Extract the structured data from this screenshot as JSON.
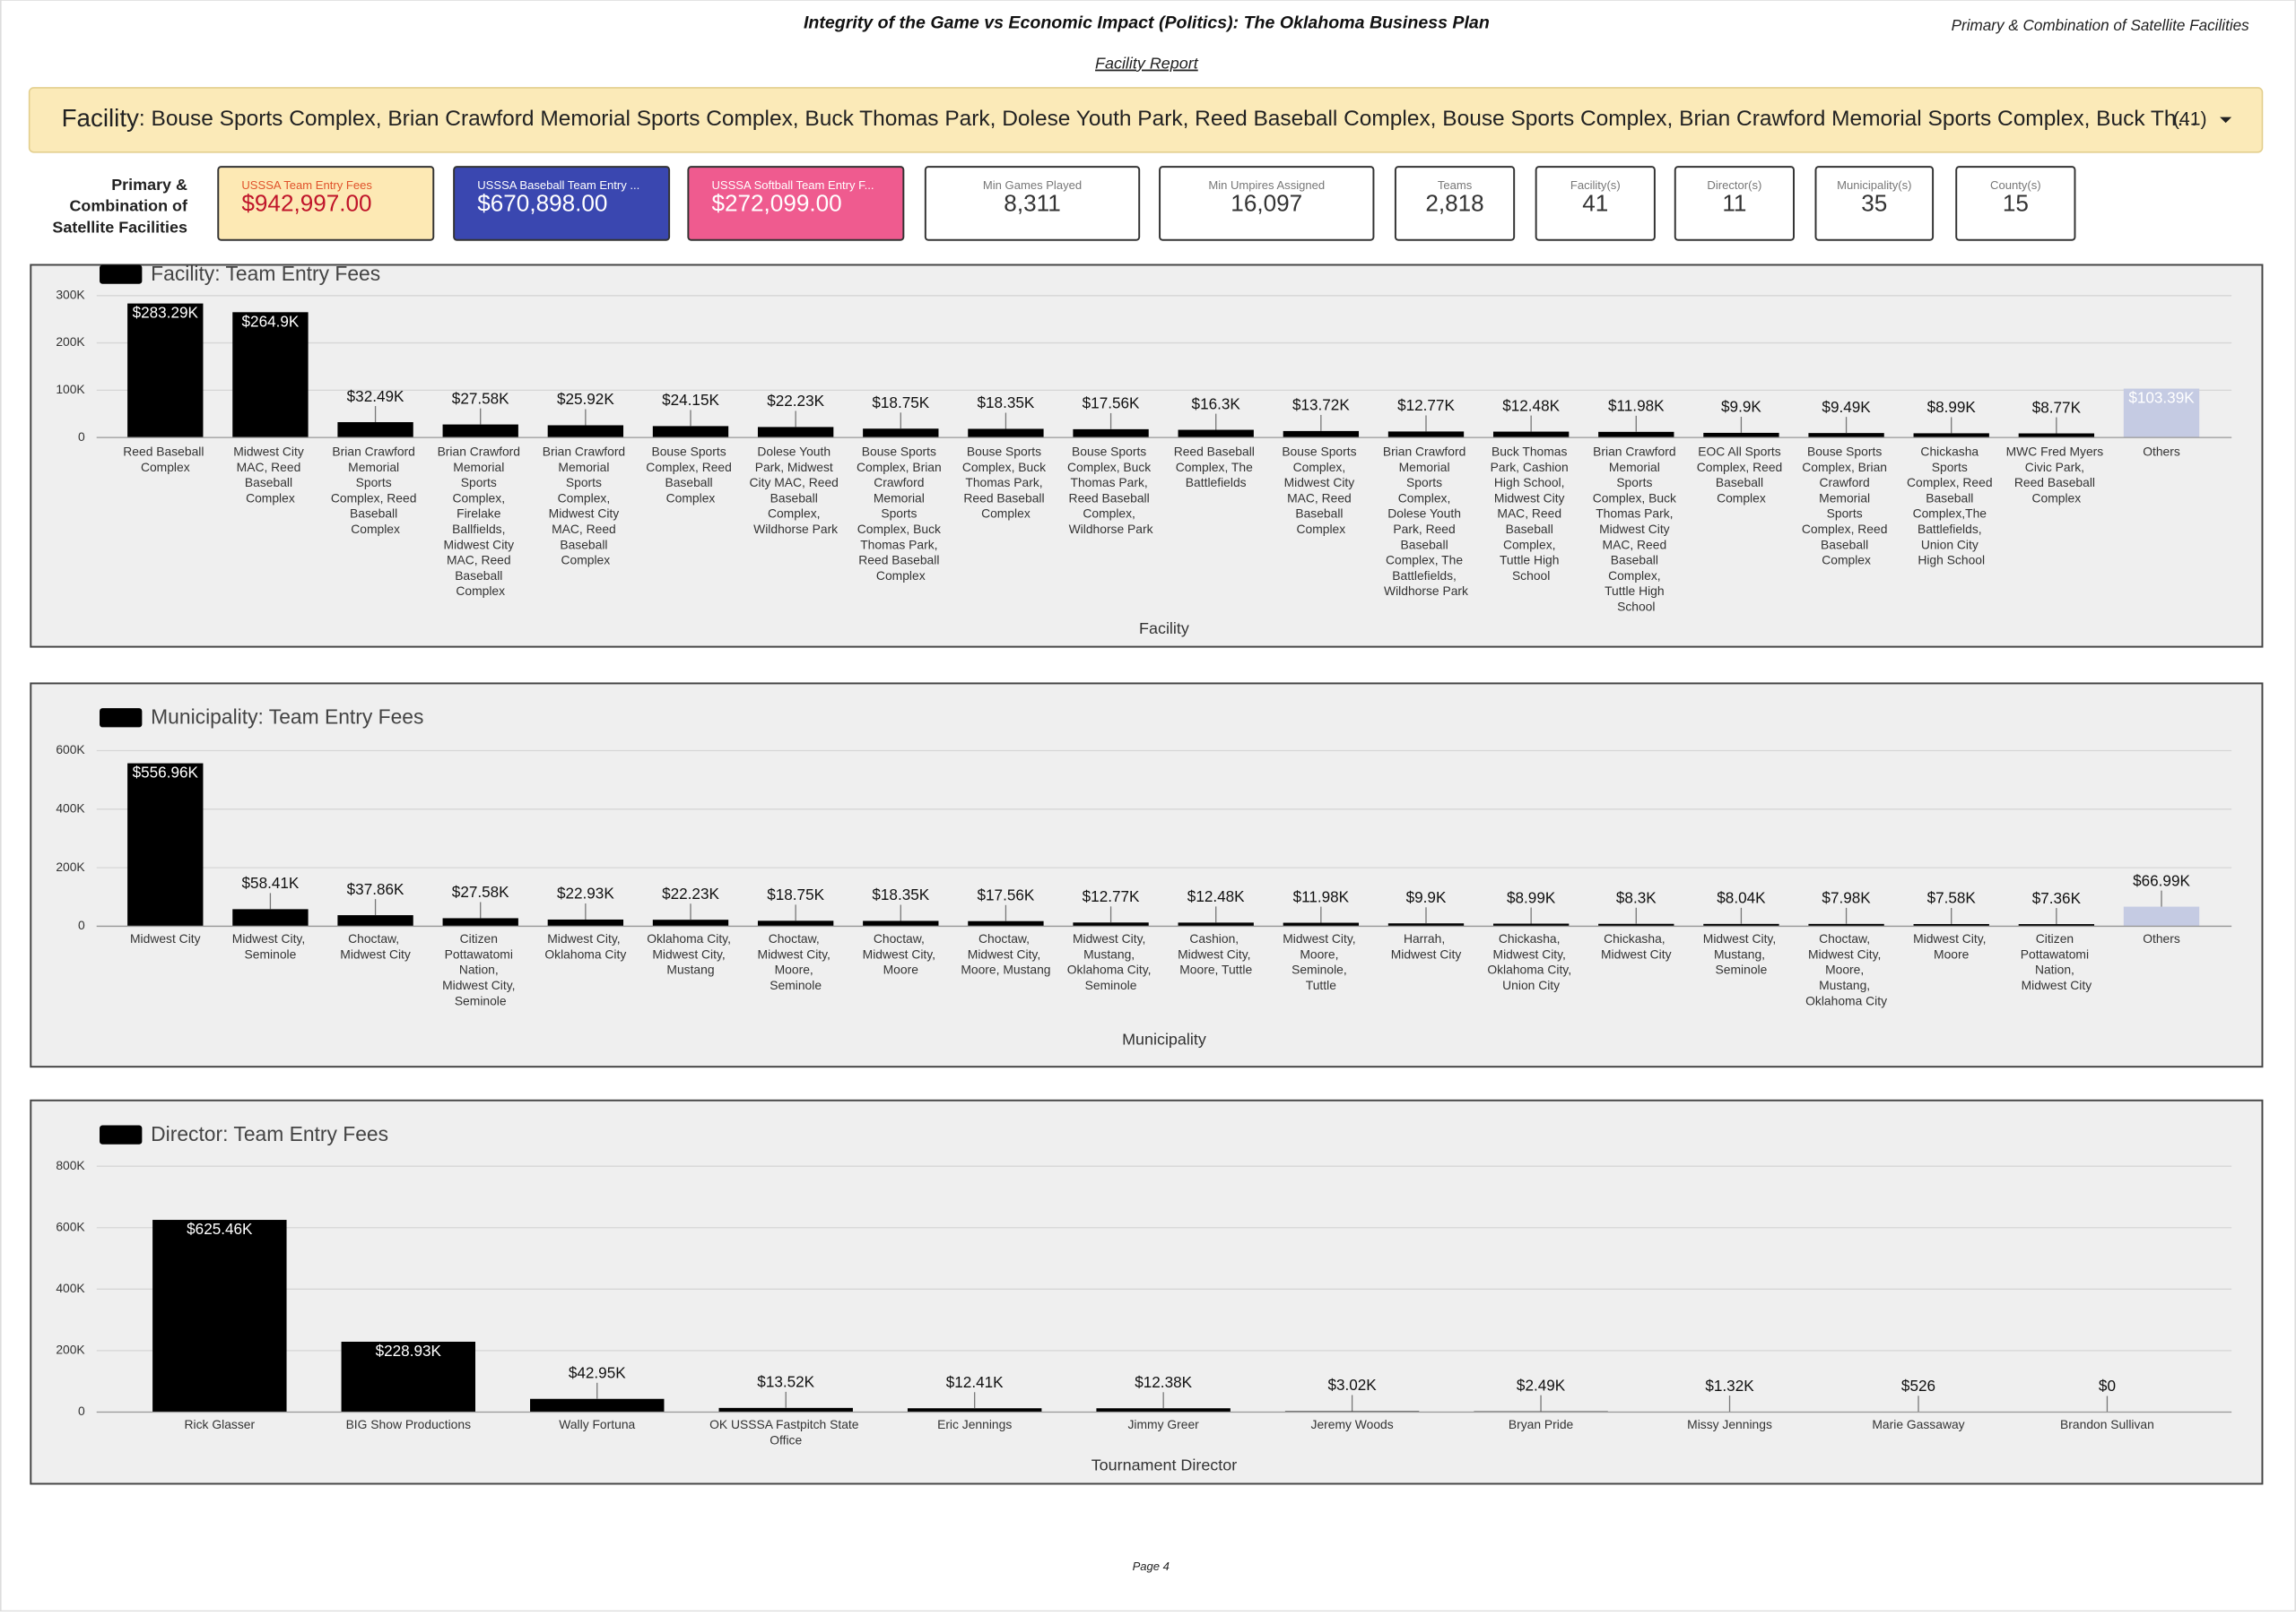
{
  "header": {
    "title": "Integrity of the Game vs Economic Impact (Politics): The Oklahoma Business Plan",
    "right_note": "Primary & Combination of Satellite Facilities",
    "subtitle": "Facility Report"
  },
  "filter": {
    "label": "Facility",
    "selection": ": Bouse Sports Complex, Brian Crawford Memorial Sports Complex, Buck Thomas Park, Dolese Youth Park, Reed Baseball Complex, Bouse Sports Complex, Brian Crawford Memorial Sports Complex, Buck Th…",
    "count": "(41)"
  },
  "kpi_side_label": [
    "Primary &",
    "Combination of",
    "Satellite Facilities"
  ],
  "kpis": [
    {
      "label": "USSSA Team Entry Fees",
      "value": "$942,997.00"
    },
    {
      "label": "USSSA Baseball Team Entry ...",
      "value": "$670,898.00"
    },
    {
      "label": "USSSA Softball Team Entry F...",
      "value": "$272,099.00"
    },
    {
      "label": "Min Games Played",
      "value": "8,311"
    },
    {
      "label": "Min Umpires Assigned",
      "value": "16,097"
    },
    {
      "label": "Teams",
      "value": "2,818"
    },
    {
      "label": "Facility(s)",
      "value": "41"
    },
    {
      "label": "Director(s)",
      "value": "11"
    },
    {
      "label": "Municipality(s)",
      "value": "35"
    },
    {
      "label": "County(s)",
      "value": "15"
    }
  ],
  "chart_data": [
    {
      "type": "bar",
      "x_label": "Facility",
      "others_color": "#c5cbe3",
      "categories": [
        "Reed Baseball Complex",
        "Midwest City MAC, Reed Baseball Complex",
        "Brian Crawford Memorial Sports Complex, Reed Baseball Complex",
        "Brian Crawford Memorial Sports Complex, Firelake Ballfields, Midwest City MAC, Reed Baseball Complex",
        "Brian Crawford Memorial Sports Complex, Midwest City MAC, Reed Baseball Complex",
        "Bouse Sports Complex, Reed Baseball Complex",
        "Dolese Youth Park, Midwest City MAC, Reed Baseball Complex, Wildhorse Park",
        "Bouse Sports Complex, Brian Crawford Memorial Sports Complex, Buck Thomas Park, Reed Baseball Complex",
        "Bouse Sports Complex, Buck Thomas Park, Reed Baseball Complex",
        "Bouse Sports Complex, Buck Thomas Park, Reed Baseball Complex, Wildhorse Park",
        "Reed Baseball Complex, The Battlefields",
        "Bouse Sports Complex, Midwest City MAC, Reed Baseball Complex",
        "Brian Crawford Memorial Sports Complex, Dolese Youth Park, Reed Baseball Complex, The Battlefields, Wildhorse Park",
        "Buck Thomas Park, Cashion High School, Midwest City MAC, Reed Baseball Complex, Tuttle High School",
        "Brian Crawford Memorial Sports Complex, Buck Thomas Park, Midwest City MAC, Reed Baseball Complex, Tuttle High School",
        "EOC All Sports Complex, Reed Baseball Complex",
        "Bouse Sports Complex, Brian Crawford Memorial Sports Complex, Reed Baseball Complex",
        "Chickasha Sports Complex, Reed Baseball Complex,The Battlefields, Union City High School",
        "MWC Fred Myers Civic Park, Reed Baseball Complex",
        "Others"
      ],
      "series": [
        {
          "name": "Facility: Team Entry Fees",
          "color": "#000000",
          "values": [
            283290,
            264900,
            32490,
            27580,
            25920,
            24150,
            22230,
            18750,
            18350,
            17560,
            16300,
            13720,
            12770,
            12480,
            11980,
            9900,
            9490,
            8990,
            8770,
            103390
          ],
          "value_labels": [
            "$283.29K",
            "$264.9K",
            "$32.49K",
            "$27.58K",
            "$25.92K",
            "$24.15K",
            "$22.23K",
            "$18.75K",
            "$18.35K",
            "$17.56K",
            "$16.3K",
            "$13.72K",
            "$12.77K",
            "$12.48K",
            "$11.98K",
            "$9.9K",
            "$9.49K",
            "$8.99K",
            "$8.77K",
            "$103.39K"
          ]
        }
      ],
      "ylim": [
        0,
        300000
      ],
      "yticks": [
        {
          "value": 0,
          "label": "0"
        },
        {
          "value": 100000,
          "label": "100K"
        },
        {
          "value": 200000,
          "label": "200K"
        },
        {
          "value": 300000,
          "label": "300K"
        }
      ]
    },
    {
      "type": "bar",
      "x_label": "Municipality",
      "others_color": "#c5cbe3",
      "categories": [
        "Midwest City",
        "Midwest City, Seminole",
        "Choctaw, Midwest City",
        "Citizen Pottawatomi Nation, Midwest City, Seminole",
        "Midwest City, Oklahoma City",
        "Oklahoma City, Midwest City, Mustang",
        "Choctaw, Midwest City, Moore, Seminole",
        "Choctaw, Midwest City, Moore",
        "Choctaw, Midwest City, Moore, Mustang",
        "Midwest City, Mustang, Oklahoma City, Seminole",
        "Cashion, Midwest City, Moore, Tuttle",
        "Midwest City, Moore, Seminole, Tuttle",
        "Harrah, Midwest City",
        "Chickasha, Midwest City, Oklahoma City, Union City",
        "Chickasha, Midwest City",
        "Midwest City, Mustang, Seminole",
        "Choctaw, Midwest City, Moore, Mustang, Oklahoma City",
        "Midwest City, Moore",
        "Citizen Pottawatomi Nation, Midwest City",
        "Others"
      ],
      "series": [
        {
          "name": "Municipality: Team Entry Fees",
          "color": "#000000",
          "values": [
            556960,
            58410,
            37860,
            27580,
            22930,
            22230,
            18750,
            18350,
            17560,
            12770,
            12480,
            11980,
            9900,
            8990,
            8300,
            8040,
            7980,
            7580,
            7360,
            66990
          ],
          "value_labels": [
            "$556.96K",
            "$58.41K",
            "$37.86K",
            "$27.58K",
            "$22.93K",
            "$22.23K",
            "$18.75K",
            "$18.35K",
            "$17.56K",
            "$12.77K",
            "$12.48K",
            "$11.98K",
            "$9.9K",
            "$8.99K",
            "$8.3K",
            "$8.04K",
            "$7.98K",
            "$7.58K",
            "$7.36K",
            "$66.99K"
          ]
        }
      ],
      "ylim": [
        0,
        600000
      ],
      "yticks": [
        {
          "value": 0,
          "label": "0"
        },
        {
          "value": 200000,
          "label": "200K"
        },
        {
          "value": 400000,
          "label": "400K"
        },
        {
          "value": 600000,
          "label": "600K"
        }
      ]
    },
    {
      "type": "bar",
      "x_label": "Tournament Director",
      "categories": [
        "Rick Glasser",
        "BIG Show Productions",
        "Wally Fortuna",
        "OK USSSA Fastpitch State Office",
        "Eric Jennings",
        "Jimmy Greer",
        "Jeremy Woods",
        "Bryan Pride",
        "Missy Jennings",
        "Marie Gassaway",
        "Brandon Sullivan"
      ],
      "series": [
        {
          "name": "Director: Team Entry Fees",
          "color": "#000000",
          "values": [
            625460,
            228930,
            42950,
            13520,
            12410,
            12380,
            3020,
            2490,
            1320,
            526,
            0
          ],
          "value_labels": [
            "$625.46K",
            "$228.93K",
            "$42.95K",
            "$13.52K",
            "$12.41K",
            "$12.38K",
            "$3.02K",
            "$2.49K",
            "$1.32K",
            "$526",
            "$0"
          ]
        }
      ],
      "ylim": [
        0,
        800000
      ],
      "yticks": [
        {
          "value": 0,
          "label": "0"
        },
        {
          "value": 200000,
          "label": "200K"
        },
        {
          "value": 400000,
          "label": "400K"
        },
        {
          "value": 600000,
          "label": "600K"
        },
        {
          "value": 800000,
          "label": "800K"
        }
      ]
    }
  ],
  "footer": "Page 4"
}
